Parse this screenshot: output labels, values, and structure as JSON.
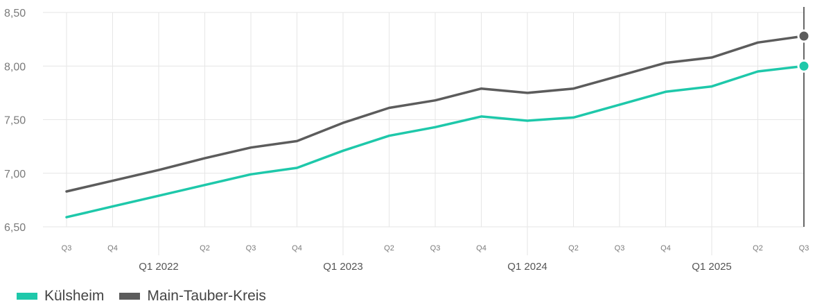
{
  "colors": {
    "kulsheim": "#1ec8aa",
    "main_tauber": "#5c5c5c",
    "grid": "#e6e6e6"
  },
  "chart_data": {
    "type": "line",
    "categories": [
      "Q3 2021",
      "Q4 2021",
      "Q1 2022",
      "Q2 2022",
      "Q3 2022",
      "Q4 2022",
      "Q1 2023",
      "Q2 2023",
      "Q3 2023",
      "Q4 2023",
      "Q1 2024",
      "Q2 2024",
      "Q3 2024",
      "Q4 2024",
      "Q1 2025",
      "Q2 2025",
      "Q3 2025"
    ],
    "x_tick_labels": [
      "Q3",
      "Q4",
      "Q1 2022",
      "Q2",
      "Q3",
      "Q4",
      "Q1 2023",
      "Q2",
      "Q3",
      "Q4",
      "Q1 2024",
      "Q2",
      "Q3",
      "Q4",
      "Q1 2025",
      "Q2",
      "Q3"
    ],
    "y_tick_labels": [
      "6,50",
      "7,00",
      "7,50",
      "8,00",
      "8,50"
    ],
    "y_ticks": [
      6.5,
      7.0,
      7.5,
      8.0,
      8.5
    ],
    "ylim": [
      6.5,
      8.5
    ],
    "grid": true,
    "legend_position": "bottom-left",
    "series": [
      {
        "name": "Külsheim",
        "color_key": "kulsheim",
        "values": [
          6.59,
          6.69,
          6.79,
          6.89,
          6.99,
          7.05,
          7.21,
          7.35,
          7.43,
          7.53,
          7.49,
          7.52,
          7.64,
          7.76,
          7.81,
          7.95,
          8.0
        ]
      },
      {
        "name": "Main-Tauber-Kreis",
        "color_key": "main_tauber",
        "values": [
          6.83,
          6.93,
          7.03,
          7.14,
          7.24,
          7.3,
          7.47,
          7.61,
          7.68,
          7.79,
          7.75,
          7.79,
          7.91,
          8.03,
          8.08,
          8.22,
          8.28
        ]
      }
    ]
  }
}
